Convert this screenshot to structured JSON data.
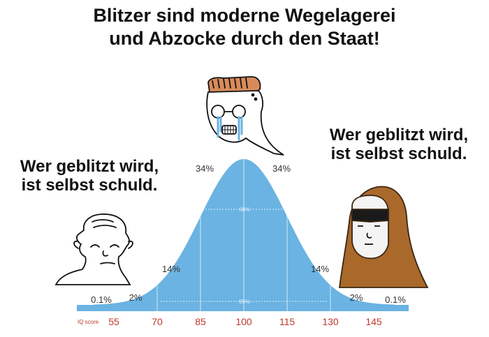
{
  "title": {
    "line1": "Blitzer sind moderne Wegelagerei",
    "line2": "und Abzocke durch den Staat!"
  },
  "left_quote": {
    "line1": "Wer geblitzt wird,",
    "line2": "ist selbst schuld."
  },
  "right_quote": {
    "line1": "Wer geblitzt wird,",
    "line2": "ist selbst schuld."
  },
  "chart_data": {
    "type": "area",
    "xlabel": "IQ score",
    "x_ticks": [
      "55",
      "70",
      "85",
      "100",
      "115",
      "130",
      "145"
    ],
    "segment_percentages": {
      "far_left": "0.1%",
      "left_tail": "2%",
      "left_mid": "14%",
      "left_center": "34%",
      "right_center": "34%",
      "right_mid": "14%",
      "right_tail": "2%",
      "far_right": "0.1%"
    },
    "band_labels": {
      "inner": "68%",
      "outer": "95%"
    },
    "curve_color": "#6ab3e2"
  },
  "characters": [
    "wojak-left",
    "crying-wojak-center",
    "hooded-wojak-right"
  ]
}
